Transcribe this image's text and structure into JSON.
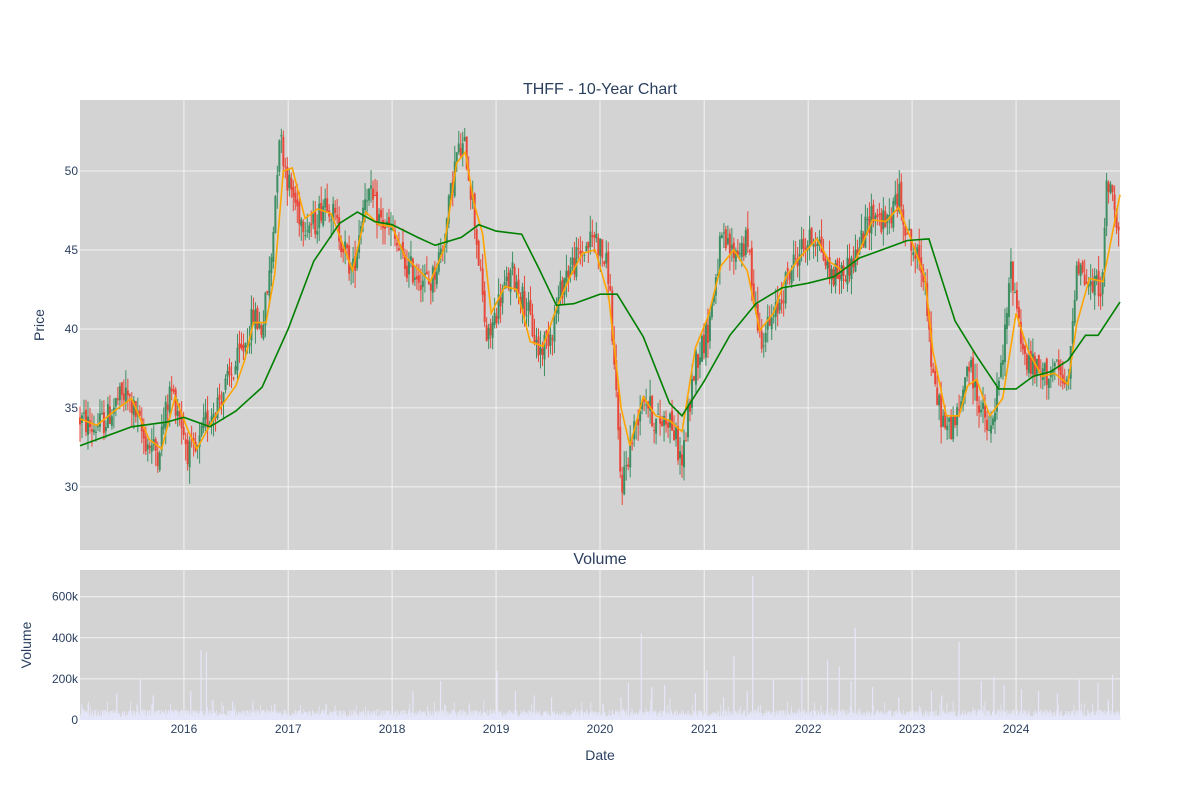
{
  "colors": {
    "plot_bg": "#d3d3d3",
    "grid": "#f2f2f2",
    "up": "#3d8f63",
    "down": "#e8483a",
    "ma_short": "#ffa500",
    "ma_long": "#008000",
    "volume": "#e6e6fa",
    "text": "#2a3f5f"
  },
  "chart_data": [
    {
      "type": "candlestick",
      "title": "THFF - 10-Year Chart",
      "xlabel": "",
      "ylabel": "Price",
      "xlim": [
        "2015-01-01",
        "2024-12-31"
      ],
      "ylim": [
        26,
        54.5
      ],
      "yticks": [
        30,
        35,
        40,
        45,
        50
      ],
      "grid": true,
      "legend": "none",
      "series": [
        {
          "kind": "moving_average_short",
          "points": [
            [
              "2015-01-01",
              34.3
            ],
            [
              "2015-03-01",
              33.9
            ],
            [
              "2015-05-01",
              34.8
            ],
            [
              "2015-07-01",
              35.6
            ],
            [
              "2015-09-01",
              33.0
            ],
            [
              "2015-10-15",
              32.4
            ],
            [
              "2015-12-01",
              35.7
            ],
            [
              "2016-01-15",
              33.6
            ],
            [
              "2016-02-15",
              32.4
            ],
            [
              "2016-04-01",
              33.9
            ],
            [
              "2016-05-15",
              35.2
            ],
            [
              "2016-07-01",
              36.4
            ],
            [
              "2016-08-01",
              38.0
            ],
            [
              "2016-09-01",
              40.4
            ],
            [
              "2016-10-15",
              40.4
            ],
            [
              "2016-11-15",
              43.5
            ],
            [
              "2016-12-15",
              50.0
            ],
            [
              "2017-01-15",
              50.2
            ],
            [
              "2017-03-01",
              47.0
            ],
            [
              "2017-04-15",
              47.6
            ],
            [
              "2017-06-01",
              47.3
            ],
            [
              "2017-07-15",
              45.2
            ],
            [
              "2017-08-15",
              43.7
            ],
            [
              "2017-10-01",
              47.4
            ],
            [
              "2017-11-15",
              46.6
            ],
            [
              "2018-01-01",
              46.5
            ],
            [
              "2018-02-15",
              44.6
            ],
            [
              "2018-04-01",
              43.8
            ],
            [
              "2018-05-15",
              43.0
            ],
            [
              "2018-07-01",
              45.0
            ],
            [
              "2018-08-15",
              50.5
            ],
            [
              "2018-09-15",
              51.2
            ],
            [
              "2018-10-15",
              48.0
            ],
            [
              "2018-11-15",
              46.0
            ],
            [
              "2018-12-15",
              41.0
            ],
            [
              "2019-02-01",
              42.7
            ],
            [
              "2019-03-15",
              42.5
            ],
            [
              "2019-05-01",
              39.2
            ],
            [
              "2019-06-15",
              38.9
            ],
            [
              "2019-08-01",
              41.3
            ],
            [
              "2019-09-15",
              43.2
            ],
            [
              "2019-11-01",
              44.8
            ],
            [
              "2019-12-15",
              45.0
            ],
            [
              "2020-02-01",
              42.0
            ],
            [
              "2020-03-15",
              35.0
            ],
            [
              "2020-04-15",
              32.6
            ],
            [
              "2020-06-01",
              35.7
            ],
            [
              "2020-07-15",
              34.5
            ],
            [
              "2020-09-01",
              34.2
            ],
            [
              "2020-10-15",
              33.5
            ],
            [
              "2020-12-01",
              38.8
            ],
            [
              "2021-01-15",
              40.8
            ],
            [
              "2021-03-01",
              44.0
            ],
            [
              "2021-04-15",
              45.0
            ],
            [
              "2021-06-01",
              43.7
            ],
            [
              "2021-07-15",
              39.9
            ],
            [
              "2021-09-01",
              41.0
            ],
            [
              "2021-10-15",
              43.3
            ],
            [
              "2021-12-01",
              44.5
            ],
            [
              "2022-02-01",
              45.7
            ],
            [
              "2022-03-15",
              44.3
            ],
            [
              "2022-05-01",
              43.7
            ],
            [
              "2022-06-15",
              44.3
            ],
            [
              "2022-08-15",
              46.9
            ],
            [
              "2022-10-01",
              46.8
            ],
            [
              "2022-11-15",
              47.7
            ],
            [
              "2023-01-01",
              45.5
            ],
            [
              "2023-02-15",
              43.3
            ],
            [
              "2023-03-15",
              38.6
            ],
            [
              "2023-05-01",
              34.5
            ],
            [
              "2023-06-15",
              34.5
            ],
            [
              "2023-07-15",
              36.4
            ],
            [
              "2023-08-15",
              36.8
            ],
            [
              "2023-10-01",
              34.5
            ],
            [
              "2023-11-15",
              35.6
            ],
            [
              "2024-01-01",
              41.0
            ],
            [
              "2024-02-15",
              38.5
            ],
            [
              "2024-04-01",
              37.0
            ],
            [
              "2024-05-15",
              37.2
            ],
            [
              "2024-07-01",
              36.5
            ],
            [
              "2024-08-01",
              40.3
            ],
            [
              "2024-09-15",
              43.2
            ],
            [
              "2024-11-01",
              43.0
            ],
            [
              "2024-12-31",
              48.5
            ]
          ]
        },
        {
          "kind": "moving_average_long",
          "points": [
            [
              "2015-01-01",
              32.6
            ],
            [
              "2015-07-01",
              33.8
            ],
            [
              "2015-11-01",
              34.1
            ],
            [
              "2016-01-01",
              34.4
            ],
            [
              "2016-04-01",
              33.8
            ],
            [
              "2016-07-01",
              34.8
            ],
            [
              "2016-10-01",
              36.3
            ],
            [
              "2017-01-01",
              40.0
            ],
            [
              "2017-04-01",
              44.3
            ],
            [
              "2017-07-01",
              46.7
            ],
            [
              "2017-09-01",
              47.4
            ],
            [
              "2017-11-01",
              46.8
            ],
            [
              "2018-01-01",
              46.6
            ],
            [
              "2018-04-01",
              45.8
            ],
            [
              "2018-06-01",
              45.3
            ],
            [
              "2018-09-01",
              45.8
            ],
            [
              "2018-11-01",
              46.6
            ],
            [
              "2019-01-01",
              46.2
            ],
            [
              "2019-04-01",
              46.0
            ],
            [
              "2019-06-01",
              43.8
            ],
            [
              "2019-08-01",
              41.5
            ],
            [
              "2019-10-01",
              41.6
            ],
            [
              "2020-01-01",
              42.2
            ],
            [
              "2020-03-01",
              42.2
            ],
            [
              "2020-06-01",
              39.5
            ],
            [
              "2020-09-01",
              35.3
            ],
            [
              "2020-10-15",
              34.5
            ],
            [
              "2021-01-01",
              36.7
            ],
            [
              "2021-04-01",
              39.6
            ],
            [
              "2021-07-01",
              41.6
            ],
            [
              "2021-10-01",
              42.6
            ],
            [
              "2022-01-01",
              42.9
            ],
            [
              "2022-04-01",
              43.3
            ],
            [
              "2022-07-01",
              44.5
            ],
            [
              "2022-10-01",
              45.1
            ],
            [
              "2022-12-15",
              45.6
            ],
            [
              "2023-03-01",
              45.7
            ],
            [
              "2023-06-01",
              40.5
            ],
            [
              "2023-08-15",
              38.3
            ],
            [
              "2023-11-01",
              36.2
            ],
            [
              "2024-01-01",
              36.2
            ],
            [
              "2024-03-01",
              37.0
            ],
            [
              "2024-05-01",
              37.3
            ],
            [
              "2024-07-01",
              38.0
            ],
            [
              "2024-09-01",
              39.6
            ],
            [
              "2024-10-15",
              39.6
            ],
            [
              "2024-12-31",
              41.7
            ]
          ]
        }
      ],
      "price_path": [
        [
          "2015-01-01",
          34.3
        ],
        [
          "2015-02-15",
          33.7
        ],
        [
          "2015-04-01",
          34.2
        ],
        [
          "2015-05-15",
          35.5
        ],
        [
          "2015-06-15",
          35.8
        ],
        [
          "2015-07-15",
          34.6
        ],
        [
          "2015-08-15",
          33.0
        ],
        [
          "2015-10-01",
          32.2
        ],
        [
          "2015-11-15",
          36.2
        ],
        [
          "2015-12-15",
          34.8
        ],
        [
          "2016-01-15",
          32.2
        ],
        [
          "2016-02-15",
          32.0
        ],
        [
          "2016-03-15",
          34.0
        ],
        [
          "2016-05-01",
          35.5
        ],
        [
          "2016-06-15",
          37.0
        ],
        [
          "2016-08-01",
          39.0
        ],
        [
          "2016-09-01",
          40.8
        ],
        [
          "2016-10-01",
          40.0
        ],
        [
          "2016-11-01",
          44.0
        ],
        [
          "2016-12-01",
          52.5
        ],
        [
          "2017-01-01",
          49.3
        ],
        [
          "2017-02-15",
          47.0
        ],
        [
          "2017-04-01",
          46.5
        ],
        [
          "2017-05-15",
          48.5
        ],
        [
          "2017-07-01",
          46.0
        ],
        [
          "2017-08-15",
          43.5
        ],
        [
          "2017-10-01",
          49.0
        ],
        [
          "2017-11-15",
          47.0
        ],
        [
          "2018-01-01",
          46.0
        ],
        [
          "2018-02-15",
          44.0
        ],
        [
          "2018-04-01",
          43.5
        ],
        [
          "2018-05-15",
          42.8
        ],
        [
          "2018-07-01",
          45.5
        ],
        [
          "2018-08-15",
          51.0
        ],
        [
          "2018-09-15",
          51.5
        ],
        [
          "2018-10-15",
          47.5
        ],
        [
          "2018-12-01",
          39.0
        ],
        [
          "2019-01-15",
          42.0
        ],
        [
          "2019-03-01",
          43.5
        ],
        [
          "2019-04-15",
          41.5
        ],
        [
          "2019-06-01",
          38.5
        ],
        [
          "2019-07-15",
          40.0
        ],
        [
          "2019-09-01",
          43.5
        ],
        [
          "2019-10-15",
          44.5
        ],
        [
          "2019-12-15",
          46.0
        ],
        [
          "2020-02-01",
          43.5
        ],
        [
          "2020-03-15",
          30.0
        ],
        [
          "2020-04-15",
          32.5
        ],
        [
          "2020-06-01",
          36.0
        ],
        [
          "2020-07-15",
          34.0
        ],
        [
          "2020-09-01",
          34.5
        ],
        [
          "2020-10-15",
          31.5
        ],
        [
          "2020-12-01",
          38.0
        ],
        [
          "2021-01-15",
          40.0
        ],
        [
          "2021-03-01",
          45.5
        ],
        [
          "2021-04-15",
          44.8
        ],
        [
          "2021-06-01",
          45.5
        ],
        [
          "2021-07-15",
          39.5
        ],
        [
          "2021-09-01",
          40.5
        ],
        [
          "2021-10-15",
          43.0
        ],
        [
          "2021-12-01",
          45.0
        ],
        [
          "2022-02-01",
          46.0
        ],
        [
          "2022-03-15",
          43.5
        ],
        [
          "2022-05-01",
          43.5
        ],
        [
          "2022-06-15",
          44.5
        ],
        [
          "2022-08-15",
          47.5
        ],
        [
          "2022-10-01",
          46.5
        ],
        [
          "2022-11-15",
          48.5
        ],
        [
          "2023-01-01",
          45.0
        ],
        [
          "2023-02-15",
          43.5
        ],
        [
          "2023-03-15",
          36.5
        ],
        [
          "2023-05-01",
          33.5
        ],
        [
          "2023-06-15",
          34.5
        ],
        [
          "2023-07-15",
          38.0
        ],
        [
          "2023-08-15",
          36.0
        ],
        [
          "2023-10-01",
          33.0
        ],
        [
          "2023-11-15",
          38.0
        ],
        [
          "2023-12-15",
          44.0
        ],
        [
          "2024-02-01",
          38.0
        ],
        [
          "2024-04-01",
          37.0
        ],
        [
          "2024-05-15",
          37.5
        ],
        [
          "2024-07-01",
          36.0
        ],
        [
          "2024-08-01",
          44.5
        ],
        [
          "2024-09-15",
          42.5
        ],
        [
          "2024-11-01",
          43.0
        ],
        [
          "2024-11-15",
          49.5
        ],
        [
          "2024-12-31",
          46.5
        ]
      ]
    },
    {
      "type": "bar",
      "title": "Volume",
      "xlabel": "Date",
      "ylabel": "Volume",
      "xlim": [
        "2015-01-01",
        "2024-12-31"
      ],
      "ylim": [
        0,
        730000
      ],
      "yticks": [
        0,
        200000,
        400000,
        600000
      ],
      "ytick_labels": [
        "0",
        "200k",
        "400k",
        "600k"
      ],
      "xticks": [
        "2016-01-01",
        "2017-01-01",
        "2018-01-01",
        "2019-01-01",
        "2020-01-01",
        "2021-01-01",
        "2022-01-01",
        "2023-01-01",
        "2024-01-01"
      ],
      "xtick_labels": [
        "2016",
        "2017",
        "2018",
        "2019",
        "2020",
        "2021",
        "2022",
        "2023",
        "2024"
      ],
      "grid": true,
      "spikes": [
        [
          "2015-01-10",
          60000
        ],
        [
          "2015-05-10",
          130000
        ],
        [
          "2015-08-01",
          200000
        ],
        [
          "2015-09-15",
          120000
        ],
        [
          "2016-01-25",
          140000
        ],
        [
          "2016-03-01",
          340000
        ],
        [
          "2016-03-20",
          330000
        ],
        [
          "2016-06-20",
          90000
        ],
        [
          "2016-11-15",
          80000
        ],
        [
          "2017-05-15",
          80000
        ],
        [
          "2018-03-15",
          140000
        ],
        [
          "2018-06-20",
          190000
        ],
        [
          "2019-01-05",
          240000
        ],
        [
          "2019-03-10",
          140000
        ],
        [
          "2019-05-15",
          120000
        ],
        [
          "2019-07-15",
          110000
        ],
        [
          "2020-03-15",
          110000
        ],
        [
          "2020-04-10",
          180000
        ],
        [
          "2020-05-25",
          420000
        ],
        [
          "2020-07-01",
          160000
        ],
        [
          "2020-08-15",
          170000
        ],
        [
          "2020-12-01",
          130000
        ],
        [
          "2021-01-10",
          240000
        ],
        [
          "2021-03-10",
          110000
        ],
        [
          "2021-04-15",
          310000
        ],
        [
          "2021-06-01",
          140000
        ],
        [
          "2021-06-20",
          700000
        ],
        [
          "2021-09-01",
          200000
        ],
        [
          "2021-12-10",
          210000
        ],
        [
          "2022-03-10",
          290000
        ],
        [
          "2022-04-20",
          260000
        ],
        [
          "2022-06-01",
          190000
        ],
        [
          "2022-06-15",
          450000
        ],
        [
          "2022-08-15",
          160000
        ],
        [
          "2022-11-15",
          110000
        ],
        [
          "2023-03-10",
          140000
        ],
        [
          "2023-04-15",
          120000
        ],
        [
          "2023-06-15",
          380000
        ],
        [
          "2023-09-01",
          190000
        ],
        [
          "2023-10-15",
          210000
        ],
        [
          "2023-11-20",
          170000
        ],
        [
          "2024-01-20",
          150000
        ],
        [
          "2024-03-20",
          140000
        ],
        [
          "2024-05-25",
          130000
        ],
        [
          "2024-08-10",
          200000
        ],
        [
          "2024-10-15",
          180000
        ],
        [
          "2024-12-05",
          220000
        ]
      ]
    }
  ]
}
